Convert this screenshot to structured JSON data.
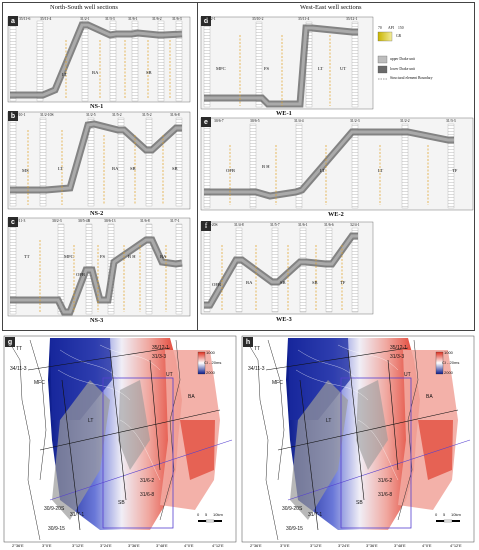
{
  "titles": {
    "ns": "North-South well sections",
    "we": "West-East well sections"
  },
  "panels": {
    "a": {
      "tag": "a",
      "caption": "NS-1",
      "wells": [
        "35/11-6",
        "35/11-4",
        "31/2-1",
        "31/3-3",
        "31/6-1",
        "31/6-2",
        "31/6-3"
      ],
      "labels": [
        "LT",
        "BA",
        "SB",
        "MS"
      ]
    },
    "b": {
      "tag": "b",
      "caption": "NS-2",
      "wells": [
        "35/10-1",
        "31/2-10S",
        "31/2-5",
        "31/5-2",
        "31/5-2",
        "31/6-8"
      ],
      "labels": [
        "MS",
        "LT",
        "BA",
        "SB",
        "SB",
        "TF"
      ]
    },
    "c": {
      "tag": "c",
      "caption": "NS-3",
      "wells": [
        "34/11-3",
        "30/2-3",
        "30/5-4B",
        "30/6-13",
        "31/6-8",
        "31/7-1"
      ],
      "labels": [
        "TT",
        "MFC",
        "OFB",
        "FS",
        "B H",
        "BA",
        "TF"
      ]
    },
    "d": {
      "tag": "d",
      "caption": "WE-1",
      "wells": [
        "30/2-1",
        "35/10-2",
        "35/11-4",
        "35/12-1"
      ],
      "labels": [
        "MFC",
        "FS",
        "LT",
        "UT",
        "BF"
      ]
    },
    "e": {
      "tag": "e",
      "caption": "WE-2",
      "wells": [
        "30/6-7",
        "30/6-5",
        "31/4-4",
        "31/2-3",
        "31/2-2",
        "31/3-3"
      ],
      "labels": [
        "OFB",
        "B H",
        "LT",
        "LT",
        "TF"
      ]
    },
    "f": {
      "tag": "f",
      "caption": "WE-3",
      "wells": [
        "30/9-20S",
        "31/4-8",
        "31/5-7",
        "31/6-1",
        "31/6-6",
        "32/4-1"
      ],
      "labels": [
        "OFB",
        "BA",
        "SB",
        "SB",
        "TF"
      ]
    },
    "g": {
      "tag": "g"
    },
    "h": {
      "tag": "h"
    }
  },
  "legend": {
    "api_min": "70",
    "api_unit": "API",
    "api_max": "150",
    "gr": "GR",
    "upper": "upper Drake unit",
    "lower": "lower Drake unit",
    "boundary": "Structural element Boundary"
  },
  "map": {
    "ci": "CI - 20ms",
    "scale": [
      "0",
      "5",
      "10km"
    ],
    "lons": [
      "2°36'E",
      "3°0'E",
      "3°12'E",
      "3°24'E",
      "3°36'E",
      "3°48'E",
      "4°0'E",
      "4°12'E"
    ],
    "labels": [
      "TT",
      "34/11-3",
      "MFC",
      "35/12-1",
      "31/3-3",
      "BA",
      "UT",
      "LT",
      "SB",
      "30/9-15",
      "30/9-20S",
      "31/7-1",
      "31/6-8",
      "31/6-2"
    ],
    "cb_top": "1000",
    "cb_bot": "2000"
  }
}
